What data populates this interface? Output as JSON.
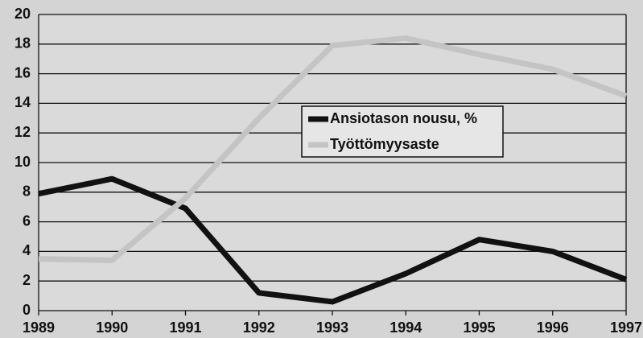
{
  "chart_data": {
    "type": "line",
    "x": [
      1989,
      1990,
      1991,
      1992,
      1993,
      1994,
      1995,
      1996,
      1997
    ],
    "series": [
      {
        "name": "Ansiotason nousu, %",
        "color": "#111111",
        "values": [
          7.9,
          8.9,
          6.9,
          1.2,
          0.6,
          2.5,
          4.8,
          4.0,
          2.1
        ]
      },
      {
        "name": "Työttömyysaste",
        "color": "#c4c4c4",
        "values": [
          3.5,
          3.4,
          7.6,
          13.0,
          17.9,
          18.4,
          17.3,
          16.3,
          14.5
        ]
      }
    ],
    "xlim": [
      1989,
      1997
    ],
    "xticks": [
      1989,
      1990,
      1991,
      1992,
      1993,
      1994,
      1995,
      1996,
      1997
    ],
    "ylim": [
      0,
      20
    ],
    "yticks": [
      0,
      2,
      4,
      6,
      8,
      10,
      12,
      14,
      16,
      18,
      20
    ],
    "grid": true
  }
}
